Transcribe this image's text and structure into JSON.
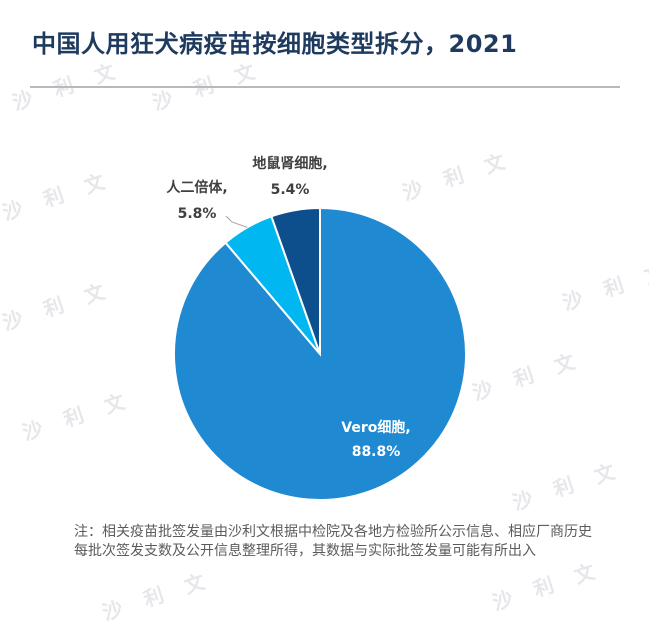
{
  "title": "中国人用狂犬病疫苗按细胞类型拆分，2021",
  "note": "注：相关疫苗批签发量由沙利文根据中检院及各地方检验所公示信息、相应厂商历史每批次签发支数及公开信息整理所得，其数据与实际批签发量可能有所出入",
  "watermark": "沙 利 文",
  "colors": {
    "title": "#1f3a5f",
    "vero": "#1f89d2",
    "human_diploid": "#00b7f1",
    "hamster_kidney": "#0c4f8c"
  },
  "chart_data": {
    "type": "pie",
    "start": "12 o'clock, clockwise",
    "slices": [
      {
        "label": "Vero细胞,",
        "value": 88.8,
        "value_label": "88.8%",
        "color": "#1f89d2"
      },
      {
        "label": "人二倍体,",
        "value": 5.8,
        "value_label": "5.8%",
        "color": "#00b7f1"
      },
      {
        "label": "地鼠肾细胞,",
        "value": 5.4,
        "value_label": "5.4%",
        "color": "#0c4f8c"
      }
    ]
  }
}
